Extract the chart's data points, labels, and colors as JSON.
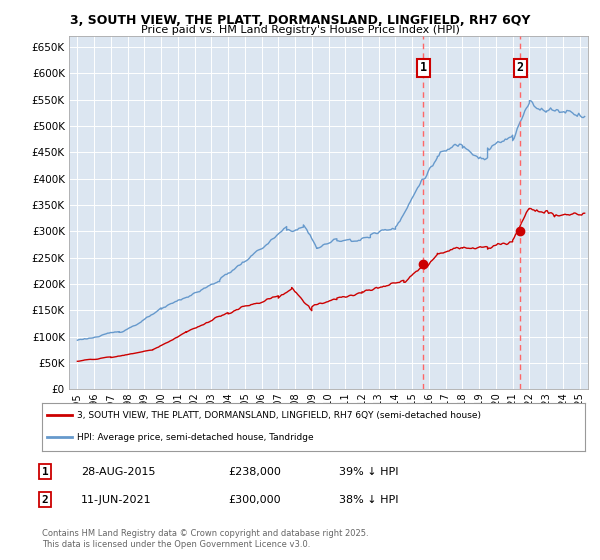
{
  "title_line1": "3, SOUTH VIEW, THE PLATT, DORMANSLAND, LINGFIELD, RH7 6QY",
  "title_line2": "Price paid vs. HM Land Registry's House Price Index (HPI)",
  "legend_red": "3, SOUTH VIEW, THE PLATT, DORMANSLAND, LINGFIELD, RH7 6QY (semi-detached house)",
  "legend_blue": "HPI: Average price, semi-detached house, Tandridge",
  "annotation1_date": "28-AUG-2015",
  "annotation1_price": "£238,000",
  "annotation1_hpi": "39% ↓ HPI",
  "annotation2_date": "11-JUN-2021",
  "annotation2_price": "£300,000",
  "annotation2_hpi": "38% ↓ HPI",
  "footnote": "Contains HM Land Registry data © Crown copyright and database right 2025.\nThis data is licensed under the Open Government Licence v3.0.",
  "vline1_x": 2015.66,
  "vline2_x": 2021.44,
  "sale1_y": 238000,
  "sale2_y": 300000,
  "ylim_min": 0,
  "ylim_max": 670000,
  "xlim_min": 1994.5,
  "xlim_max": 2025.5,
  "bg_color": "#dce6f1",
  "grid_color": "#ffffff",
  "red_color": "#cc0000",
  "blue_color": "#6699cc",
  "vline_color": "#ff6666",
  "yticks": [
    0,
    50000,
    100000,
    150000,
    200000,
    250000,
    300000,
    350000,
    400000,
    450000,
    500000,
    550000,
    600000,
    650000
  ],
  "xtick_start": 1995,
  "xtick_end": 2025
}
